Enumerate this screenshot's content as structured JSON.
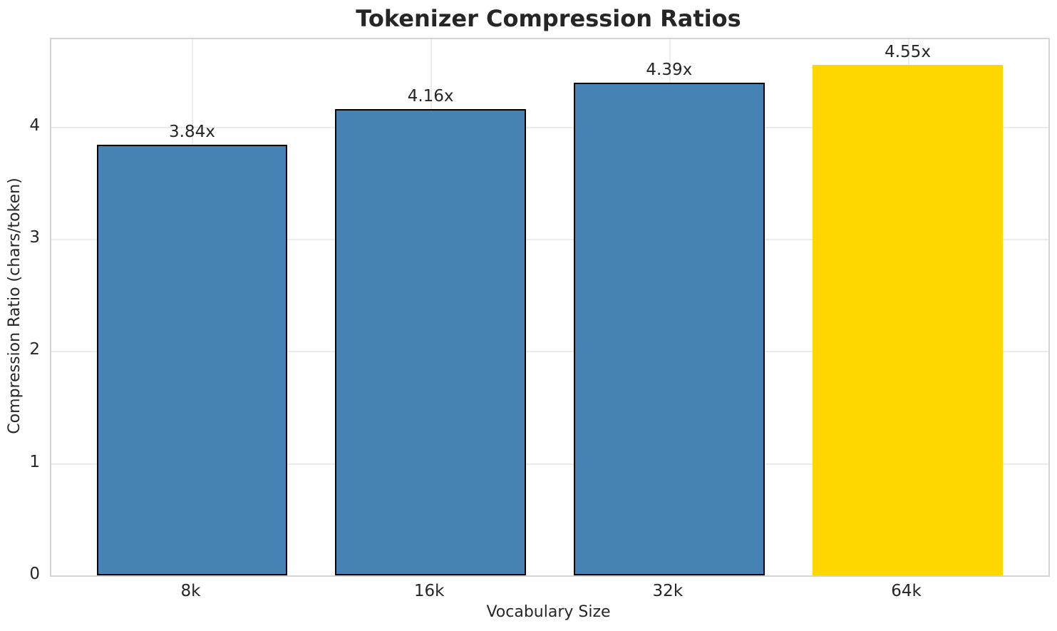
{
  "chart_data": {
    "type": "bar",
    "title": "Tokenizer Compression Ratios",
    "xlabel": "Vocabulary Size",
    "ylabel": "Compression Ratio (chars/token)",
    "categories": [
      "8k",
      "16k",
      "32k",
      "64k"
    ],
    "values": [
      3.84,
      4.16,
      4.39,
      4.55
    ],
    "value_labels": [
      "3.84x",
      "4.16x",
      "4.39x",
      "4.55x"
    ],
    "bar_colors": [
      "#4682B4",
      "#4682B4",
      "#4682B4",
      "#FFD700"
    ],
    "bar_edge_colors": [
      "#000000",
      "#000000",
      "#000000",
      null
    ],
    "yticks": [
      "0",
      "1",
      "2",
      "3",
      "4"
    ],
    "ytick_values": [
      0,
      1,
      2,
      3,
      4
    ],
    "ylim": [
      0,
      4.78
    ],
    "grid": true,
    "legend_position": "none",
    "colors": {
      "bar_default": "#4682B4",
      "bar_highlight": "#FFD700",
      "bar_edge": "#000000",
      "text": "#262626",
      "grid": "#ececec",
      "spine": "#d4d4d4",
      "background": "#ffffff"
    }
  }
}
